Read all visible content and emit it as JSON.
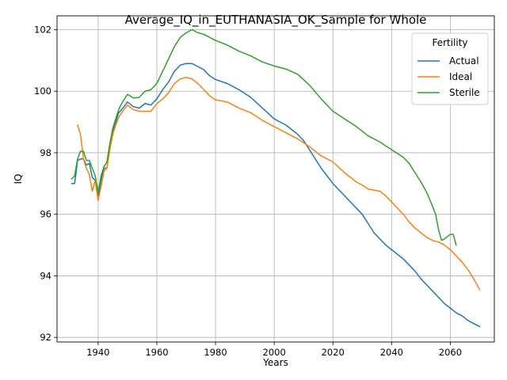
{
  "chart_data": {
    "type": "line",
    "title": "Average_IQ_in_EUTHANASIA_OK_Sample for Whole",
    "xlabel": "Years",
    "ylabel": "IQ",
    "xlim": [
      1926,
      2075
    ],
    "ylim": [
      91.85,
      102.45
    ],
    "xticks": [
      1940,
      1960,
      1980,
      2000,
      2020,
      2040,
      2060
    ],
    "yticks": [
      92,
      94,
      96,
      98,
      100,
      102
    ],
    "grid": true,
    "legend": {
      "title": "Fertility",
      "placement": "top-right"
    },
    "series": [
      {
        "name": "Actual",
        "color": "#1f77b4",
        "points": [
          [
            1931,
            97.0
          ],
          [
            1932,
            97.0
          ],
          [
            1933,
            97.75
          ],
          [
            1934,
            97.8
          ],
          [
            1935,
            97.8
          ],
          [
            1936,
            97.6
          ],
          [
            1937,
            97.65
          ],
          [
            1938,
            97.2
          ],
          [
            1939,
            97.1
          ],
          [
            1940,
            96.6
          ],
          [
            1941,
            97.1
          ],
          [
            1942,
            97.5
          ],
          [
            1943,
            97.5
          ],
          [
            1944,
            98.2
          ],
          [
            1945,
            98.7
          ],
          [
            1946,
            99.0
          ],
          [
            1947,
            99.3
          ],
          [
            1948,
            99.4
          ],
          [
            1950,
            99.65
          ],
          [
            1952,
            99.5
          ],
          [
            1954,
            99.45
          ],
          [
            1956,
            99.6
          ],
          [
            1958,
            99.55
          ],
          [
            1960,
            99.75
          ],
          [
            1962,
            100.05
          ],
          [
            1964,
            100.3
          ],
          [
            1966,
            100.65
          ],
          [
            1968,
            100.85
          ],
          [
            1970,
            100.9
          ],
          [
            1972,
            100.9
          ],
          [
            1974,
            100.8
          ],
          [
            1976,
            100.7
          ],
          [
            1978,
            100.5
          ],
          [
            1980,
            100.38
          ],
          [
            1984,
            100.25
          ],
          [
            1988,
            100.05
          ],
          [
            1992,
            99.8
          ],
          [
            1996,
            99.45
          ],
          [
            2000,
            99.1
          ],
          [
            2004,
            98.9
          ],
          [
            2008,
            98.6
          ],
          [
            2010,
            98.4
          ],
          [
            2012,
            98.1
          ],
          [
            2014,
            97.8
          ],
          [
            2016,
            97.5
          ],
          [
            2018,
            97.25
          ],
          [
            2020,
            97.0
          ],
          [
            2024,
            96.6
          ],
          [
            2028,
            96.2
          ],
          [
            2030,
            96.0
          ],
          [
            2032,
            95.7
          ],
          [
            2034,
            95.4
          ],
          [
            2036,
            95.2
          ],
          [
            2038,
            95.0
          ],
          [
            2040,
            94.85
          ],
          [
            2042,
            94.7
          ],
          [
            2044,
            94.55
          ],
          [
            2046,
            94.35
          ],
          [
            2048,
            94.15
          ],
          [
            2050,
            93.9
          ],
          [
            2052,
            93.7
          ],
          [
            2054,
            93.5
          ],
          [
            2056,
            93.3
          ],
          [
            2058,
            93.1
          ],
          [
            2060,
            92.95
          ],
          [
            2062,
            92.8
          ],
          [
            2064,
            92.7
          ],
          [
            2066,
            92.55
          ],
          [
            2068,
            92.45
          ],
          [
            2070,
            92.35
          ]
        ]
      },
      {
        "name": "Ideal",
        "color": "#ff7f0e",
        "points": [
          [
            1933,
            98.9
          ],
          [
            1934,
            98.6
          ],
          [
            1935,
            97.8
          ],
          [
            1936,
            97.5
          ],
          [
            1937,
            97.3
          ],
          [
            1938,
            96.75
          ],
          [
            1939,
            97.1
          ],
          [
            1940,
            96.45
          ],
          [
            1941,
            96.9
          ],
          [
            1942,
            97.4
          ],
          [
            1943,
            97.5
          ],
          [
            1944,
            98.1
          ],
          [
            1945,
            98.6
          ],
          [
            1946,
            98.9
          ],
          [
            1947,
            99.15
          ],
          [
            1948,
            99.3
          ],
          [
            1950,
            99.55
          ],
          [
            1952,
            99.4
          ],
          [
            1954,
            99.35
          ],
          [
            1956,
            99.35
          ],
          [
            1958,
            99.35
          ],
          [
            1960,
            99.6
          ],
          [
            1962,
            99.75
          ],
          [
            1964,
            99.95
          ],
          [
            1966,
            100.25
          ],
          [
            1968,
            100.4
          ],
          [
            1970,
            100.45
          ],
          [
            1972,
            100.4
          ],
          [
            1974,
            100.25
          ],
          [
            1976,
            100.05
          ],
          [
            1978,
            99.85
          ],
          [
            1980,
            99.72
          ],
          [
            1984,
            99.65
          ],
          [
            1988,
            99.45
          ],
          [
            1992,
            99.3
          ],
          [
            1996,
            99.05
          ],
          [
            2000,
            98.85
          ],
          [
            2004,
            98.65
          ],
          [
            2008,
            98.45
          ],
          [
            2012,
            98.2
          ],
          [
            2016,
            97.9
          ],
          [
            2020,
            97.7
          ],
          [
            2024,
            97.35
          ],
          [
            2028,
            97.05
          ],
          [
            2030,
            96.95
          ],
          [
            2032,
            96.82
          ],
          [
            2036,
            96.75
          ],
          [
            2038,
            96.6
          ],
          [
            2040,
            96.4
          ],
          [
            2042,
            96.2
          ],
          [
            2044,
            96.0
          ],
          [
            2046,
            95.75
          ],
          [
            2048,
            95.55
          ],
          [
            2050,
            95.4
          ],
          [
            2052,
            95.25
          ],
          [
            2054,
            95.15
          ],
          [
            2056,
            95.1
          ],
          [
            2058,
            95.0
          ],
          [
            2060,
            94.85
          ],
          [
            2062,
            94.65
          ],
          [
            2064,
            94.45
          ],
          [
            2066,
            94.2
          ],
          [
            2068,
            93.9
          ],
          [
            2070,
            93.55
          ]
        ]
      },
      {
        "name": "Sterile",
        "color": "#2ca02c",
        "points": [
          [
            1931,
            97.15
          ],
          [
            1932,
            97.25
          ],
          [
            1933,
            97.8
          ],
          [
            1934,
            98.05
          ],
          [
            1935,
            98.05
          ],
          [
            1936,
            97.75
          ],
          [
            1937,
            97.75
          ],
          [
            1938,
            97.5
          ],
          [
            1939,
            97.25
          ],
          [
            1940,
            96.7
          ],
          [
            1941,
            97.25
          ],
          [
            1942,
            97.55
          ],
          [
            1943,
            97.7
          ],
          [
            1944,
            98.3
          ],
          [
            1945,
            98.8
          ],
          [
            1946,
            99.1
          ],
          [
            1947,
            99.4
          ],
          [
            1948,
            99.6
          ],
          [
            1950,
            99.9
          ],
          [
            1952,
            99.78
          ],
          [
            1954,
            99.8
          ],
          [
            1956,
            100.0
          ],
          [
            1958,
            100.05
          ],
          [
            1960,
            100.25
          ],
          [
            1962,
            100.65
          ],
          [
            1964,
            101.05
          ],
          [
            1966,
            101.45
          ],
          [
            1968,
            101.75
          ],
          [
            1970,
            101.9
          ],
          [
            1972,
            102.0
          ],
          [
            1974,
            101.9
          ],
          [
            1976,
            101.85
          ],
          [
            1978,
            101.75
          ],
          [
            1980,
            101.65
          ],
          [
            1984,
            101.5
          ],
          [
            1988,
            101.3
          ],
          [
            1992,
            101.15
          ],
          [
            1996,
            100.95
          ],
          [
            2000,
            100.82
          ],
          [
            2004,
            100.72
          ],
          [
            2008,
            100.55
          ],
          [
            2012,
            100.2
          ],
          [
            2016,
            99.75
          ],
          [
            2020,
            99.35
          ],
          [
            2024,
            99.1
          ],
          [
            2028,
            98.85
          ],
          [
            2032,
            98.55
          ],
          [
            2036,
            98.35
          ],
          [
            2040,
            98.1
          ],
          [
            2044,
            97.85
          ],
          [
            2046,
            97.65
          ],
          [
            2048,
            97.35
          ],
          [
            2050,
            97.05
          ],
          [
            2052,
            96.7
          ],
          [
            2054,
            96.25
          ],
          [
            2055,
            96.0
          ],
          [
            2056,
            95.5
          ],
          [
            2057,
            95.15
          ],
          [
            2058,
            95.2
          ],
          [
            2060,
            95.35
          ],
          [
            2061,
            95.35
          ],
          [
            2062,
            95.0
          ]
        ]
      }
    ]
  }
}
